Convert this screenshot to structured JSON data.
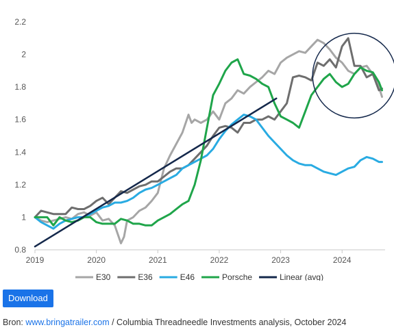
{
  "chart_data": {
    "type": "line",
    "x_ticks": [
      "2019",
      "2020",
      "2021",
      "2022",
      "2023",
      "2024"
    ],
    "y_ticks": [
      "0.8",
      "1",
      "1.2",
      "1.4",
      "1.6",
      "1.8",
      "2",
      "2.2"
    ],
    "xlim": [
      2019.0,
      2024.7
    ],
    "ylim": [
      0.8,
      2.2
    ],
    "grid": false,
    "legend_position": "bottom",
    "series": [
      {
        "name": "E30",
        "color": "#a6a6a6",
        "x": [
          2019.0,
          2019.1,
          2019.2,
          2019.3,
          2019.4,
          2019.5,
          2019.6,
          2019.7,
          2019.8,
          2019.9,
          2020.0,
          2020.1,
          2020.2,
          2020.25,
          2020.3,
          2020.4,
          2020.45,
          2020.5,
          2020.6,
          2020.7,
          2020.8,
          2020.9,
          2021.0,
          2021.1,
          2021.2,
          2021.3,
          2021.4,
          2021.5,
          2021.55,
          2021.6,
          2021.7,
          2021.8,
          2021.9,
          2022.0,
          2022.1,
          2022.2,
          2022.3,
          2022.4,
          2022.5,
          2022.6,
          2022.7,
          2022.8,
          2022.9,
          2023.0,
          2023.1,
          2023.2,
          2023.3,
          2023.4,
          2023.5,
          2023.6,
          2023.7,
          2023.8,
          2023.9,
          2024.0,
          2024.1,
          2024.2,
          2024.3,
          2024.4,
          2024.5,
          2024.6,
          2024.65
        ],
        "y": [
          1.0,
          0.98,
          0.97,
          0.98,
          0.99,
          1.0,
          0.99,
          1.02,
          1.03,
          1.01,
          1.03,
          0.98,
          0.99,
          0.97,
          0.95,
          0.84,
          0.88,
          0.98,
          1.0,
          1.04,
          1.06,
          1.1,
          1.15,
          1.3,
          1.38,
          1.45,
          1.52,
          1.63,
          1.58,
          1.6,
          1.58,
          1.6,
          1.65,
          1.6,
          1.7,
          1.73,
          1.78,
          1.76,
          1.8,
          1.83,
          1.86,
          1.9,
          1.88,
          1.95,
          1.98,
          2.0,
          2.02,
          2.01,
          2.05,
          2.09,
          2.07,
          2.03,
          1.98,
          1.95,
          1.9,
          1.88,
          1.92,
          1.93,
          1.88,
          1.8,
          1.74
        ]
      },
      {
        "name": "E36",
        "color": "#6e6e6e",
        "x": [
          2019.0,
          2019.1,
          2019.2,
          2019.3,
          2019.4,
          2019.5,
          2019.6,
          2019.7,
          2019.8,
          2019.9,
          2020.0,
          2020.1,
          2020.2,
          2020.3,
          2020.4,
          2020.5,
          2020.6,
          2020.7,
          2020.8,
          2020.9,
          2021.0,
          2021.1,
          2021.2,
          2021.3,
          2021.4,
          2021.5,
          2021.6,
          2021.7,
          2021.8,
          2021.9,
          2022.0,
          2022.1,
          2022.2,
          2022.3,
          2022.4,
          2022.5,
          2022.6,
          2022.7,
          2022.8,
          2022.9,
          2023.0,
          2023.1,
          2023.2,
          2023.3,
          2023.4,
          2023.5,
          2023.6,
          2023.7,
          2023.8,
          2023.9,
          2024.0,
          2024.1,
          2024.2,
          2024.3,
          2024.4,
          2024.5,
          2024.6,
          2024.65
        ],
        "y": [
          1.0,
          1.04,
          1.03,
          1.02,
          1.02,
          1.02,
          1.06,
          1.05,
          1.05,
          1.07,
          1.1,
          1.12,
          1.08,
          1.12,
          1.16,
          1.15,
          1.17,
          1.19,
          1.2,
          1.22,
          1.22,
          1.25,
          1.28,
          1.3,
          1.3,
          1.32,
          1.36,
          1.4,
          1.44,
          1.5,
          1.55,
          1.56,
          1.55,
          1.52,
          1.58,
          1.58,
          1.6,
          1.6,
          1.62,
          1.6,
          1.65,
          1.7,
          1.86,
          1.87,
          1.86,
          1.84,
          1.95,
          1.93,
          1.97,
          1.92,
          2.05,
          2.1,
          1.93,
          1.93,
          1.86,
          1.88,
          1.78,
          1.79
        ]
      },
      {
        "name": "E46",
        "color": "#29abe2",
        "x": [
          2019.0,
          2019.1,
          2019.2,
          2019.3,
          2019.4,
          2019.5,
          2019.6,
          2019.7,
          2019.8,
          2019.9,
          2020.0,
          2020.1,
          2020.2,
          2020.3,
          2020.4,
          2020.5,
          2020.6,
          2020.7,
          2020.8,
          2020.9,
          2021.0,
          2021.1,
          2021.2,
          2021.3,
          2021.4,
          2021.5,
          2021.6,
          2021.7,
          2021.8,
          2021.9,
          2022.0,
          2022.1,
          2022.2,
          2022.3,
          2022.4,
          2022.5,
          2022.6,
          2022.7,
          2022.8,
          2022.9,
          2023.0,
          2023.1,
          2023.2,
          2023.3,
          2023.4,
          2023.5,
          2023.6,
          2023.7,
          2023.8,
          2023.9,
          2024.0,
          2024.1,
          2024.2,
          2024.3,
          2024.4,
          2024.5,
          2024.6,
          2024.65
        ],
        "y": [
          1.0,
          0.97,
          0.95,
          0.93,
          0.96,
          0.98,
          0.99,
          1.0,
          1.0,
          1.02,
          1.04,
          1.06,
          1.07,
          1.09,
          1.09,
          1.1,
          1.12,
          1.15,
          1.17,
          1.18,
          1.2,
          1.22,
          1.24,
          1.26,
          1.3,
          1.32,
          1.34,
          1.36,
          1.38,
          1.42,
          1.48,
          1.53,
          1.57,
          1.6,
          1.63,
          1.62,
          1.6,
          1.55,
          1.5,
          1.46,
          1.42,
          1.38,
          1.35,
          1.33,
          1.32,
          1.32,
          1.3,
          1.28,
          1.27,
          1.26,
          1.28,
          1.3,
          1.31,
          1.35,
          1.37,
          1.36,
          1.34,
          1.34
        ]
      },
      {
        "name": "Porsche",
        "color": "#1fa54a",
        "x": [
          2019.0,
          2019.1,
          2019.2,
          2019.3,
          2019.4,
          2019.5,
          2019.6,
          2019.7,
          2019.8,
          2019.9,
          2020.0,
          2020.1,
          2020.2,
          2020.3,
          2020.4,
          2020.5,
          2020.6,
          2020.7,
          2020.8,
          2020.9,
          2021.0,
          2021.1,
          2021.2,
          2021.3,
          2021.4,
          2021.5,
          2021.6,
          2021.7,
          2021.8,
          2021.9,
          2022.0,
          2022.1,
          2022.2,
          2022.3,
          2022.4,
          2022.5,
          2022.6,
          2022.7,
          2022.8,
          2022.9,
          2023.0,
          2023.1,
          2023.2,
          2023.3,
          2023.4,
          2023.5,
          2023.6,
          2023.7,
          2023.8,
          2023.9,
          2024.0,
          2024.1,
          2024.2,
          2024.3,
          2024.4,
          2024.5,
          2024.6,
          2024.65
        ],
        "y": [
          1.0,
          1.0,
          1.0,
          0.95,
          1.0,
          0.98,
          0.97,
          0.98,
          1.0,
          1.0,
          0.97,
          0.96,
          0.96,
          0.96,
          0.99,
          0.98,
          0.96,
          0.96,
          0.95,
          0.95,
          0.98,
          1.0,
          1.02,
          1.05,
          1.08,
          1.1,
          1.2,
          1.35,
          1.55,
          1.75,
          1.82,
          1.9,
          1.95,
          1.97,
          1.88,
          1.87,
          1.85,
          1.82,
          1.8,
          1.7,
          1.62,
          1.6,
          1.58,
          1.55,
          1.65,
          1.75,
          1.8,
          1.85,
          1.88,
          1.83,
          1.8,
          1.82,
          1.88,
          1.92,
          1.9,
          1.89,
          1.83,
          1.78
        ]
      },
      {
        "name": "Linear (avg)",
        "color": "#14284b",
        "x": [
          2019.0,
          2022.93
        ],
        "y": [
          0.82,
          1.73
        ]
      }
    ],
    "annotations": [
      {
        "type": "ellipse",
        "color": "#14284b",
        "cx": 2024.2,
        "cy": 1.87,
        "rx": 0.68,
        "ry": 0.26
      }
    ]
  },
  "toolbar": {
    "download_label": "Download"
  },
  "footer": {
    "prefix": "Bron: ",
    "link_text": "www.bringatrailer.com",
    "suffix": " / Columbia Threadneedle Investments analysis, October 2024"
  }
}
